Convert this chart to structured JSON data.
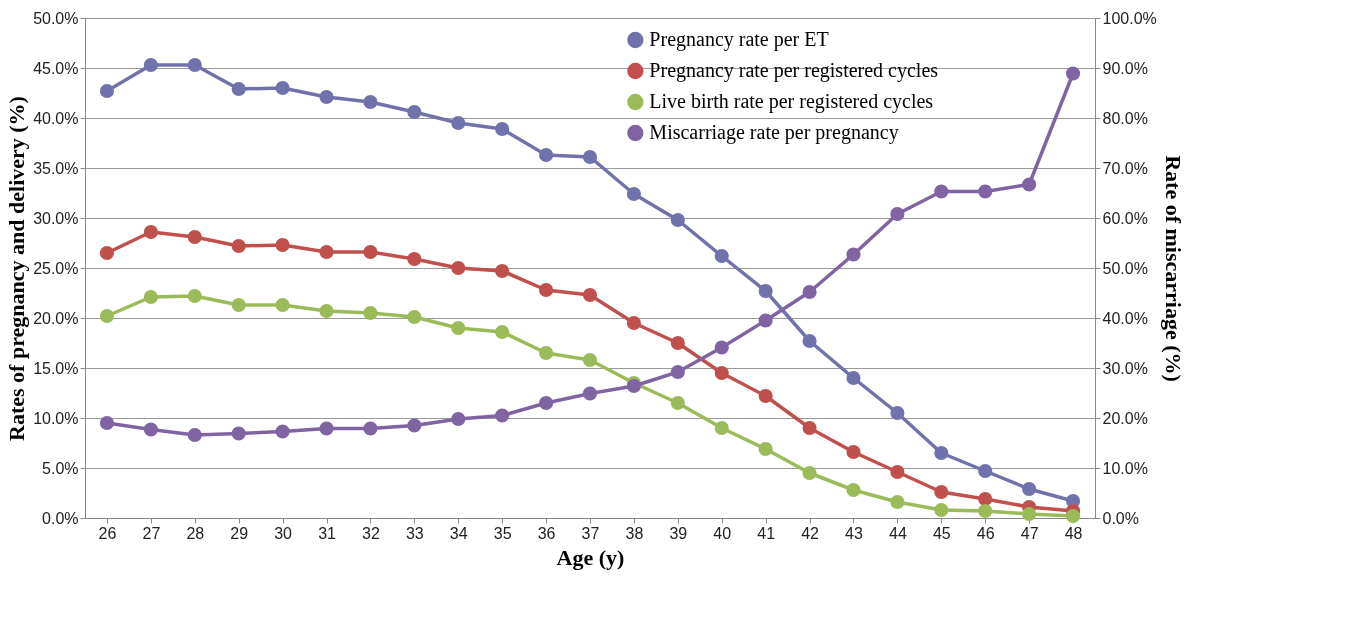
{
  "chart_data": {
    "type": "line",
    "xlabel": "Age (y)",
    "ylabel": "Rates of pregnancy and delivery (%)",
    "y2label": "Rate of miscarriage (%)",
    "categories": [
      "26",
      "27",
      "28",
      "29",
      "30",
      "31",
      "32",
      "33",
      "34",
      "35",
      "36",
      "37",
      "38",
      "39",
      "40",
      "41",
      "42",
      "43",
      "44",
      "45",
      "46",
      "47",
      "48"
    ],
    "series": [
      {
        "name": "Pregnancy rate per ET",
        "color": "#7072ab",
        "values": [
          42.7,
          45.3,
          45.3,
          42.9,
          43.0,
          42.1,
          41.6,
          40.6,
          39.5,
          38.9,
          36.3,
          36.1,
          32.4,
          29.8,
          26.2,
          22.7,
          17.7,
          14.0,
          10.5,
          6.5,
          4.7,
          2.9,
          1.7
        ]
      },
      {
        "name": "Pregnancy rate per registered cycles",
        "color": "#c0504d",
        "values": [
          26.5,
          28.6,
          28.1,
          27.2,
          27.3,
          26.6,
          26.6,
          25.9,
          25.0,
          24.7,
          22.8,
          22.3,
          19.5,
          17.5,
          14.5,
          12.2,
          9.0,
          6.6,
          4.6,
          2.6,
          1.9,
          1.1,
          0.7
        ]
      },
      {
        "name": "Live birth rate per registered cycles",
        "color": "#9bbb59",
        "values": [
          20.2,
          22.1,
          22.2,
          21.3,
          21.3,
          20.7,
          20.5,
          20.1,
          19.0,
          18.6,
          16.5,
          15.8,
          13.5,
          11.5,
          9.0,
          6.9,
          4.5,
          2.8,
          1.6,
          0.8,
          0.7,
          0.4,
          0.2
        ]
      },
      {
        "name": "Miscarriage rate per pregnancy",
        "color": "#8064a2",
        "axis": "y2",
        "values": [
          19.0,
          17.7,
          16.6,
          16.9,
          17.3,
          17.9,
          17.9,
          18.5,
          19.8,
          20.5,
          23.0,
          24.9,
          26.4,
          29.2,
          34.1,
          39.5,
          45.2,
          52.7,
          60.8,
          65.3,
          65.3,
          66.7,
          88.9
        ]
      }
    ],
    "ylim": [
      0,
      50
    ],
    "yticks": [
      {
        "value": 0,
        "label": "0.0%"
      },
      {
        "value": 5,
        "label": "5.0%"
      },
      {
        "value": 10,
        "label": "10.0%"
      },
      {
        "value": 15,
        "label": "15.0%"
      },
      {
        "value": 20,
        "label": "20.0%"
      },
      {
        "value": 25,
        "label": "25.0%"
      },
      {
        "value": 30,
        "label": "30.0%"
      },
      {
        "value": 35,
        "label": "35.0%"
      },
      {
        "value": 40,
        "label": "40.0%"
      },
      {
        "value": 45,
        "label": "45.0%"
      },
      {
        "value": 50,
        "label": "50.0%"
      }
    ],
    "y2lim": [
      0,
      100
    ],
    "y2ticks": [
      {
        "value": 0,
        "label": "0.0%"
      },
      {
        "value": 10,
        "label": "10.0%"
      },
      {
        "value": 20,
        "label": "20.0%"
      },
      {
        "value": 30,
        "label": "30.0%"
      },
      {
        "value": 40,
        "label": "40.0%"
      },
      {
        "value": 50,
        "label": "50.0%"
      },
      {
        "value": 60,
        "label": "60.0%"
      },
      {
        "value": 70,
        "label": "70.0%"
      },
      {
        "value": 80,
        "label": "80.0%"
      },
      {
        "value": 90,
        "label": "90.0%"
      },
      {
        "value": 100,
        "label": "100.0%"
      }
    ],
    "grid": "y",
    "legend": "top right",
    "marker": "circle",
    "line_style": "solid"
  }
}
